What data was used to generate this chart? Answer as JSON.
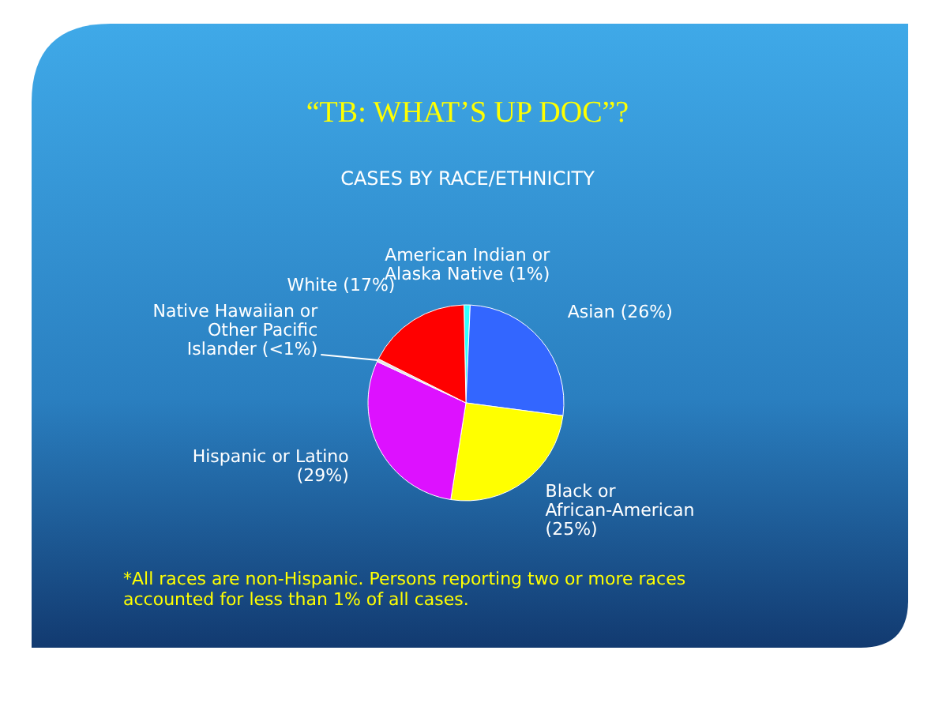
{
  "chart_data": {
    "type": "pie",
    "title": "“TB: WHAT’S UP DOC”?",
    "subtitle": "CASES BY RACE/ETHNICITY",
    "categories": [
      "American Indian or Alaska Native",
      "Asian",
      "Black or African-American",
      "Hispanic or Latino",
      "Native Hawaiian or Other Pacific Islander",
      "White"
    ],
    "values": [
      1,
      26,
      25,
      29,
      0.5,
      17
    ],
    "value_labels": [
      "(1%)",
      "(26%)",
      "(25%)",
      "(29%)",
      "(<1%)",
      "(17%)"
    ],
    "colors": [
      "#33ffff",
      "#3366ff",
      "#ffff00",
      "#dd11ff",
      "#e8e8e8",
      "#ff0000"
    ],
    "annotations": [
      "*All races are non-Hispanic. Persons reporting two or more races accounted for less than 1% of all cases."
    ]
  }
}
